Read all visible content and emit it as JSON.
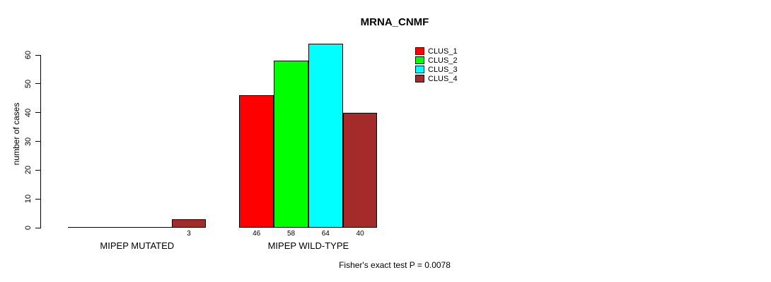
{
  "title": "MRNA_CNMF",
  "footer": "Fisher's exact test P = 0.0078",
  "chart_data": {
    "type": "bar",
    "title": "MRNA_CNMF",
    "ylabel": "number of cases",
    "xlabel": "",
    "ylim": [
      0,
      60
    ],
    "yticks": [
      0,
      10,
      20,
      30,
      40,
      50,
      60
    ],
    "grid": false,
    "legend_position": "top-right",
    "categories": [
      "MIPEP MUTATED",
      "MIPEP WILD-TYPE"
    ],
    "series": [
      {
        "name": "CLUS_1",
        "color": "#FF0000",
        "values": [
          0,
          46
        ]
      },
      {
        "name": "CLUS_2",
        "color": "#00FF00",
        "values": [
          0,
          58
        ]
      },
      {
        "name": "CLUS_3",
        "color": "#00FFFF",
        "values": [
          0,
          64
        ]
      },
      {
        "name": "CLUS_4",
        "color": "#A52A2A",
        "values": [
          3,
          40
        ]
      }
    ],
    "bar_value_labels": {
      "MIPEP MUTATED": [
        null,
        null,
        null,
        3
      ],
      "MIPEP WILD-TYPE": [
        46,
        58,
        64,
        40
      ]
    },
    "annotation": "Fisher's exact test P = 0.0078"
  }
}
